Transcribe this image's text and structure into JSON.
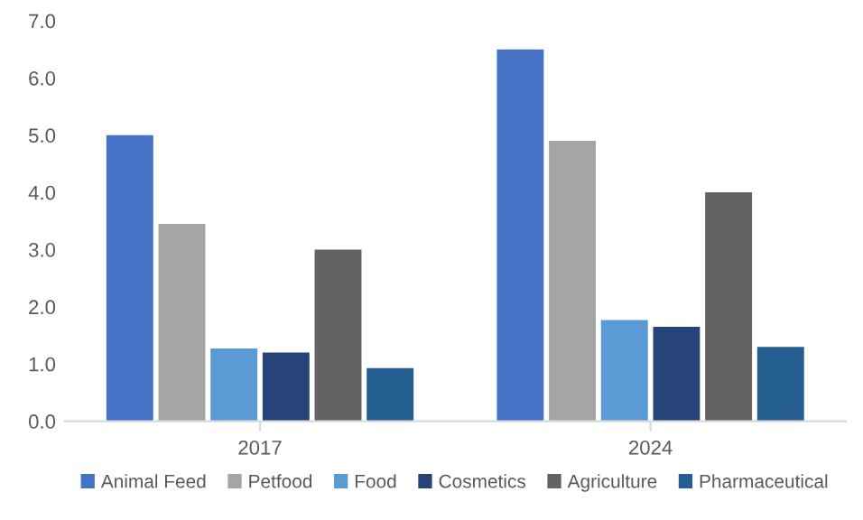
{
  "chart_data": {
    "type": "bar",
    "categories": [
      "2017",
      "2024"
    ],
    "series": [
      {
        "name": "Animal Feed",
        "color": "#4472c4",
        "values": [
          5.0,
          6.5
        ]
      },
      {
        "name": "Petfood",
        "color": "#a5a5a5",
        "values": [
          3.45,
          4.9
        ]
      },
      {
        "name": "Food",
        "color": "#5b9bd5",
        "values": [
          1.27,
          1.77
        ]
      },
      {
        "name": "Cosmetics",
        "color": "#264478",
        "values": [
          1.2,
          1.65
        ]
      },
      {
        "name": "Agriculture",
        "color": "#636363",
        "values": [
          3.0,
          4.0
        ]
      },
      {
        "name": "Pharmaceutical",
        "color": "#255e91",
        "values": [
          0.93,
          1.3
        ]
      }
    ],
    "ylim": [
      0,
      7
    ],
    "yticks": [
      {
        "value": 0,
        "label": "0.0"
      },
      {
        "value": 1,
        "label": "1.0"
      },
      {
        "value": 2,
        "label": "2.0"
      },
      {
        "value": 3,
        "label": "3.0"
      },
      {
        "value": 4,
        "label": "4.0"
      },
      {
        "value": 5,
        "label": "5.0"
      },
      {
        "value": 6,
        "label": "6.0"
      },
      {
        "value": 7,
        "label": "7.0"
      }
    ],
    "grid": false,
    "legend": "bottom"
  }
}
